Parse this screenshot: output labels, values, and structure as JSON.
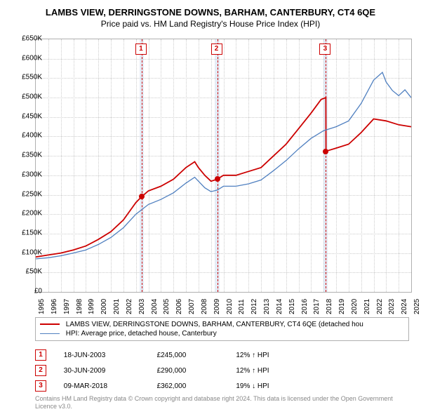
{
  "title": "LAMBS VIEW, DERRINGSTONE DOWNS, BARHAM, CANTERBURY, CT4 6QE",
  "subtitle": "Price paid vs. HM Land Registry's House Price Index (HPI)",
  "chart": {
    "type": "line",
    "background_color": "#ffffff",
    "grid_color": "#cccccc",
    "border_color": "#b0b0b0",
    "y": {
      "min": 0,
      "max": 650000,
      "step": 50000,
      "labels": [
        "£0",
        "£50K",
        "£100K",
        "£150K",
        "£200K",
        "£250K",
        "£300K",
        "£350K",
        "£400K",
        "£450K",
        "£500K",
        "£550K",
        "£600K",
        "£650K"
      ]
    },
    "x": {
      "min": 1995,
      "max": 2025,
      "step": 1,
      "labels": [
        "1995",
        "1996",
        "1997",
        "1998",
        "1999",
        "2000",
        "2001",
        "2002",
        "2003",
        "2004",
        "2005",
        "2006",
        "2007",
        "2008",
        "2009",
        "2010",
        "2011",
        "2012",
        "2013",
        "2014",
        "2015",
        "2016",
        "2017",
        "2018",
        "2019",
        "2020",
        "2021",
        "2022",
        "2023",
        "2024",
        "2025"
      ]
    },
    "marker_bands_color": "rgba(150,180,220,0.25)",
    "marker_line_color": "#cc0000",
    "series": [
      {
        "id": "property",
        "color": "#cc0000",
        "width": 1.8,
        "label": "LAMBS VIEW, DERRINGSTONE DOWNS, BARHAM, CANTERBURY, CT4 6QE (detached hou",
        "points": [
          [
            1995,
            90000
          ],
          [
            1996,
            95000
          ],
          [
            1997,
            100000
          ],
          [
            1998,
            108000
          ],
          [
            1999,
            118000
          ],
          [
            2000,
            135000
          ],
          [
            2001,
            155000
          ],
          [
            2002,
            185000
          ],
          [
            2003,
            230000
          ],
          [
            2003.46,
            245000
          ],
          [
            2004,
            260000
          ],
          [
            2005,
            272000
          ],
          [
            2006,
            290000
          ],
          [
            2007,
            320000
          ],
          [
            2007.7,
            335000
          ],
          [
            2008,
            320000
          ],
          [
            2008.5,
            300000
          ],
          [
            2009,
            285000
          ],
          [
            2009.5,
            290000
          ],
          [
            2010,
            300000
          ],
          [
            2011,
            300000
          ],
          [
            2012,
            310000
          ],
          [
            2013,
            320000
          ],
          [
            2014,
            350000
          ],
          [
            2015,
            380000
          ],
          [
            2016,
            420000
          ],
          [
            2017,
            460000
          ],
          [
            2017.8,
            495000
          ],
          [
            2018.18,
            500000
          ],
          [
            2018.19,
            362000
          ],
          [
            2018.5,
            365000
          ],
          [
            2019,
            370000
          ],
          [
            2020,
            380000
          ],
          [
            2021,
            410000
          ],
          [
            2022,
            445000
          ],
          [
            2023,
            440000
          ],
          [
            2024,
            430000
          ],
          [
            2025,
            425000
          ]
        ]
      },
      {
        "id": "hpi",
        "color": "#5080c0",
        "width": 1.3,
        "label": "HPI: Average price, detached house, Canterbury",
        "points": [
          [
            1995,
            85000
          ],
          [
            1996,
            88000
          ],
          [
            1997,
            93000
          ],
          [
            1998,
            100000
          ],
          [
            1999,
            108000
          ],
          [
            2000,
            122000
          ],
          [
            2001,
            140000
          ],
          [
            2002,
            165000
          ],
          [
            2003,
            200000
          ],
          [
            2004,
            225000
          ],
          [
            2005,
            238000
          ],
          [
            2006,
            255000
          ],
          [
            2007,
            280000
          ],
          [
            2007.7,
            295000
          ],
          [
            2008,
            285000
          ],
          [
            2008.5,
            268000
          ],
          [
            2009,
            258000
          ],
          [
            2009.5,
            262000
          ],
          [
            2010,
            272000
          ],
          [
            2011,
            272000
          ],
          [
            2012,
            278000
          ],
          [
            2013,
            288000
          ],
          [
            2014,
            312000
          ],
          [
            2015,
            338000
          ],
          [
            2016,
            368000
          ],
          [
            2017,
            395000
          ],
          [
            2018,
            415000
          ],
          [
            2019,
            425000
          ],
          [
            2020,
            440000
          ],
          [
            2021,
            485000
          ],
          [
            2022,
            545000
          ],
          [
            2022.7,
            565000
          ],
          [
            2023,
            540000
          ],
          [
            2023.5,
            518000
          ],
          [
            2024,
            505000
          ],
          [
            2024.5,
            520000
          ],
          [
            2025,
            500000
          ]
        ]
      }
    ],
    "markers": [
      {
        "n": "1",
        "x": 2003.46,
        "y": 245000,
        "band_start": 2003.3,
        "band_end": 2003.65
      },
      {
        "n": "2",
        "x": 2009.5,
        "y": 290000,
        "band_start": 2009.3,
        "band_end": 2009.7
      },
      {
        "n": "3",
        "x": 2018.18,
        "y": 362000,
        "band_start": 2018.0,
        "band_end": 2018.35
      }
    ]
  },
  "legend": {
    "series1_color": "#cc0000",
    "series2_color": "#5080c0"
  },
  "details": [
    {
      "n": "1",
      "date": "18-JUN-2003",
      "price": "£245,000",
      "delta": "12% ↑ HPI"
    },
    {
      "n": "2",
      "date": "30-JUN-2009",
      "price": "£290,000",
      "delta": "12% ↑ HPI"
    },
    {
      "n": "3",
      "date": "09-MAR-2018",
      "price": "£362,000",
      "delta": "19% ↓ HPI"
    }
  ],
  "footer": "Contains HM Land Registry data © Crown copyright and database right 2024. This data is licensed under the Open Government Licence v3.0."
}
